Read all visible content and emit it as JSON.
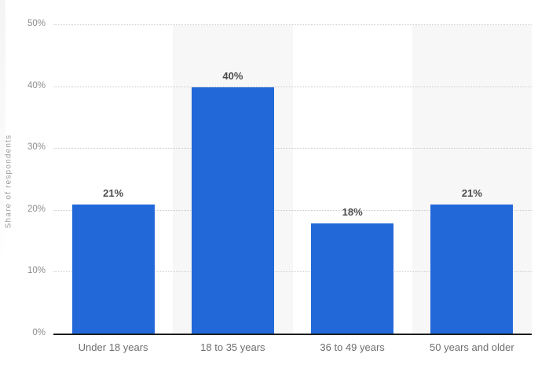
{
  "chart_data": {
    "type": "bar",
    "title": "",
    "xlabel": "",
    "ylabel": "Share of respondents",
    "categories": [
      "Under 18 years",
      "18 to 35 years",
      "36 to 49 years",
      "50 years and older"
    ],
    "values": [
      21,
      40,
      18,
      21
    ],
    "value_labels": [
      "21%",
      "40%",
      "18%",
      "21%"
    ],
    "ylim": [
      0,
      50
    ],
    "yticks": [
      0,
      10,
      20,
      30,
      40,
      50
    ],
    "ytick_labels": [
      "0%",
      "10%",
      "20%",
      "30%",
      "40%",
      "50%"
    ],
    "grid": "horizontal-dotted",
    "legend": "none",
    "banded_category_indices": [
      1,
      3
    ]
  },
  "colors": {
    "bar": "#2368d9",
    "band": "#f7f7f7",
    "gridline": "#c9c9c9",
    "axis_line": "#1d1d1d",
    "tick_text": "#8e8e8e",
    "category_text": "#6e6e6e",
    "value_text": "#4c4c4c",
    "axis_title_text": "#9b9b9b",
    "background": "#ffffff"
  }
}
